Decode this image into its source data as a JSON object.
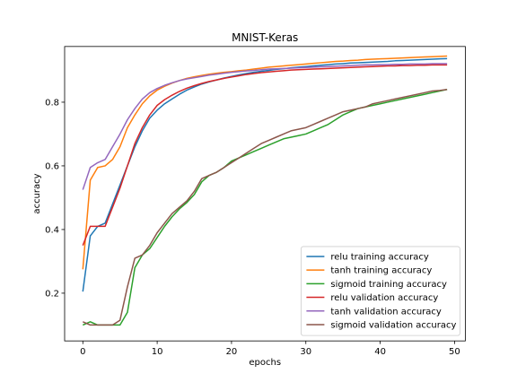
{
  "chart_data": {
    "type": "line",
    "title": "MNIST-Keras",
    "xlabel": "epochs",
    "ylabel": "accuracy",
    "xlim": [
      -2.45,
      51.45
    ],
    "ylim": [
      0.05,
      0.975
    ],
    "xticks": [
      0,
      10,
      20,
      30,
      40,
      50
    ],
    "yticks": [
      0.2,
      0.4,
      0.6,
      0.8
    ],
    "grid": false,
    "legend_position": "lower-right",
    "x": [
      0,
      1,
      2,
      3,
      4,
      5,
      6,
      7,
      8,
      9,
      10,
      11,
      12,
      13,
      14,
      15,
      16,
      17,
      18,
      19,
      20,
      21,
      22,
      23,
      24,
      25,
      26,
      27,
      28,
      29,
      30,
      31,
      32,
      33,
      34,
      35,
      36,
      37,
      38,
      39,
      40,
      41,
      42,
      43,
      44,
      45,
      46,
      47,
      48,
      49
    ],
    "series": [
      {
        "name": "relu training accuracy",
        "color": "#1f77b4",
        "values": [
          0.205,
          0.38,
          0.41,
          0.42,
          0.48,
          0.54,
          0.6,
          0.66,
          0.71,
          0.75,
          0.775,
          0.795,
          0.81,
          0.825,
          0.838,
          0.848,
          0.857,
          0.864,
          0.87,
          0.876,
          0.881,
          0.886,
          0.89,
          0.894,
          0.897,
          0.9,
          0.903,
          0.905,
          0.908,
          0.91,
          0.912,
          0.914,
          0.916,
          0.918,
          0.92,
          0.921,
          0.923,
          0.924,
          0.925,
          0.926,
          0.927,
          0.928,
          0.93,
          0.931,
          0.932,
          0.933,
          0.934,
          0.935,
          0.936,
          0.937
        ]
      },
      {
        "name": "tanh training accuracy",
        "color": "#ff7f0e",
        "values": [
          0.275,
          0.555,
          0.595,
          0.6,
          0.62,
          0.66,
          0.72,
          0.76,
          0.795,
          0.82,
          0.838,
          0.85,
          0.86,
          0.868,
          0.875,
          0.88,
          0.884,
          0.888,
          0.891,
          0.894,
          0.896,
          0.899,
          0.901,
          0.904,
          0.907,
          0.91,
          0.912,
          0.914,
          0.916,
          0.918,
          0.92,
          0.922,
          0.924,
          0.926,
          0.928,
          0.929,
          0.931,
          0.932,
          0.934,
          0.935,
          0.936,
          0.937,
          0.938,
          0.939,
          0.94,
          0.941,
          0.942,
          0.943,
          0.944,
          0.945
        ]
      },
      {
        "name": "sigmoid training accuracy",
        "color": "#2ca02c",
        "values": [
          0.1,
          0.11,
          0.1,
          0.1,
          0.1,
          0.1,
          0.14,
          0.28,
          0.32,
          0.34,
          0.375,
          0.41,
          0.44,
          0.465,
          0.485,
          0.51,
          0.55,
          0.57,
          0.58,
          0.595,
          0.615,
          0.625,
          0.635,
          0.645,
          0.655,
          0.665,
          0.675,
          0.685,
          0.69,
          0.695,
          0.7,
          0.71,
          0.72,
          0.73,
          0.745,
          0.76,
          0.77,
          0.78,
          0.785,
          0.79,
          0.795,
          0.8,
          0.805,
          0.81,
          0.815,
          0.82,
          0.825,
          0.83,
          0.835,
          0.84
        ]
      },
      {
        "name": "relu validation accuracy",
        "color": "#d62728",
        "values": [
          0.35,
          0.41,
          0.41,
          0.41,
          0.47,
          0.53,
          0.6,
          0.67,
          0.72,
          0.76,
          0.79,
          0.808,
          0.822,
          0.834,
          0.844,
          0.852,
          0.859,
          0.865,
          0.87,
          0.875,
          0.879,
          0.883,
          0.887,
          0.89,
          0.893,
          0.895,
          0.897,
          0.899,
          0.901,
          0.902,
          0.903,
          0.904,
          0.905,
          0.906,
          0.907,
          0.908,
          0.909,
          0.91,
          0.911,
          0.912,
          0.913,
          0.914,
          0.914,
          0.915,
          0.915,
          0.916,
          0.916,
          0.917,
          0.917,
          0.917
        ]
      },
      {
        "name": "tanh validation accuracy",
        "color": "#9467bd",
        "values": [
          0.525,
          0.595,
          0.61,
          0.62,
          0.66,
          0.7,
          0.745,
          0.78,
          0.81,
          0.83,
          0.843,
          0.853,
          0.861,
          0.868,
          0.873,
          0.877,
          0.881,
          0.885,
          0.888,
          0.891,
          0.894,
          0.896,
          0.898,
          0.9,
          0.902,
          0.904,
          0.905,
          0.906,
          0.907,
          0.908,
          0.909,
          0.91,
          0.911,
          0.912,
          0.913,
          0.914,
          0.915,
          0.916,
          0.917,
          0.917,
          0.918,
          0.918,
          0.919,
          0.919,
          0.92,
          0.92,
          0.92,
          0.921,
          0.921,
          0.921
        ]
      },
      {
        "name": "sigmoid validation accuracy",
        "color": "#8c564b",
        "values": [
          0.11,
          0.1,
          0.1,
          0.1,
          0.1,
          0.115,
          0.22,
          0.31,
          0.32,
          0.35,
          0.39,
          0.42,
          0.45,
          0.47,
          0.49,
          0.52,
          0.56,
          0.57,
          0.58,
          0.595,
          0.61,
          0.625,
          0.64,
          0.655,
          0.67,
          0.68,
          0.69,
          0.7,
          0.71,
          0.715,
          0.72,
          0.73,
          0.74,
          0.75,
          0.76,
          0.77,
          0.775,
          0.78,
          0.785,
          0.795,
          0.8,
          0.805,
          0.81,
          0.815,
          0.82,
          0.825,
          0.83,
          0.835,
          0.837,
          0.84
        ]
      }
    ]
  }
}
